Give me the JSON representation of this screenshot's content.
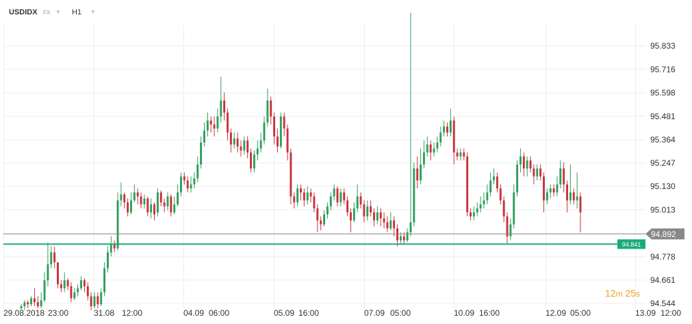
{
  "header": {
    "symbol": "USDIDX",
    "market": "FX",
    "timeframe": "H1"
  },
  "timer": {
    "minutes": "12",
    "m": "m",
    "seconds": "25",
    "s": "s"
  },
  "colors": {
    "up": "#2e9e5b",
    "down": "#c8323c",
    "grid": "#eeeeee",
    "current_price_bg": "#888888",
    "support_line": "#1aab7a"
  },
  "chart_data": {
    "type": "candlestick",
    "title": "",
    "ylim": [
      94.52,
      95.94
    ],
    "y_ticks": [
      "95.833",
      "95.716",
      "95.598",
      "95.481",
      "95.364",
      "95.247",
      "95.130",
      "95.013",
      "94.778",
      "94.661",
      "94.544"
    ],
    "x_ticks": [
      "29.08.2018",
      "23:00",
      "31.08",
      "12:00",
      "04.09",
      "06:00",
      "05.09",
      "16:00",
      "07.09",
      "05:00",
      "10.09",
      "16:00",
      "12.09",
      "05:00",
      "13.09",
      "12:00"
    ],
    "current_price": "94.892",
    "horizontal_line": {
      "value": "94.841"
    },
    "grid": true,
    "candles": [
      [
        94.52,
        94.53,
        94.54,
        94.51
      ],
      [
        94.53,
        94.55,
        94.56,
        94.51
      ],
      [
        94.55,
        94.54,
        94.56,
        94.52
      ],
      [
        94.54,
        94.57,
        94.58,
        94.53
      ],
      [
        94.57,
        94.55,
        94.62,
        94.53
      ],
      [
        94.55,
        94.53,
        94.58,
        94.52
      ],
      [
        94.53,
        94.56,
        94.6,
        94.52
      ],
      [
        94.56,
        94.66,
        94.7,
        94.55
      ],
      [
        94.66,
        94.74,
        94.85,
        94.63
      ],
      [
        94.74,
        94.8,
        94.83,
        94.72
      ],
      [
        94.8,
        94.75,
        94.83,
        94.72
      ],
      [
        94.75,
        94.64,
        94.75,
        94.62
      ],
      [
        94.64,
        94.62,
        94.66,
        94.6
      ],
      [
        94.62,
        94.66,
        94.7,
        94.6
      ],
      [
        94.66,
        94.63,
        94.67,
        94.61
      ],
      [
        94.63,
        94.57,
        94.65,
        94.55
      ],
      [
        94.57,
        94.6,
        94.62,
        94.56
      ],
      [
        94.6,
        94.62,
        94.64,
        94.58
      ],
      [
        94.62,
        94.66,
        94.68,
        94.61
      ],
      [
        94.66,
        94.63,
        94.67,
        94.6
      ],
      [
        94.63,
        94.58,
        94.65,
        94.56
      ],
      [
        94.58,
        94.53,
        94.6,
        94.51
      ],
      [
        94.53,
        94.58,
        94.6,
        94.52
      ],
      [
        94.58,
        94.54,
        94.6,
        94.52
      ],
      [
        94.54,
        94.6,
        94.62,
        94.53
      ],
      [
        94.6,
        94.72,
        94.75,
        94.58
      ],
      [
        94.72,
        94.8,
        94.83,
        94.7
      ],
      [
        94.8,
        94.84,
        94.88,
        94.78
      ],
      [
        94.84,
        94.82,
        94.86,
        94.8
      ],
      [
        94.82,
        95.06,
        95.1,
        94.81
      ],
      [
        95.06,
        95.09,
        95.15,
        95.03
      ],
      [
        95.09,
        95.05,
        95.1,
        95.02
      ],
      [
        95.05,
        95.0,
        95.07,
        94.98
      ],
      [
        95.0,
        95.06,
        95.1,
        94.99
      ],
      [
        95.06,
        95.1,
        95.14,
        95.05
      ],
      [
        95.1,
        95.08,
        95.12,
        95.04
      ],
      [
        95.08,
        95.04,
        95.1,
        95.02
      ],
      [
        95.04,
        95.07,
        95.09,
        95.02
      ],
      [
        95.07,
        95.0,
        95.08,
        94.98
      ],
      [
        95.0,
        95.04,
        95.07,
        94.97
      ],
      [
        95.04,
        94.99,
        95.05,
        94.96
      ],
      [
        95.0,
        95.1,
        95.12,
        94.98
      ],
      [
        95.1,
        95.05,
        95.11,
        95.03
      ],
      [
        95.05,
        95.03,
        95.07,
        95.0
      ],
      [
        95.03,
        95.08,
        95.1,
        95.01
      ],
      [
        95.08,
        95.0,
        95.09,
        94.98
      ],
      [
        95.0,
        95.04,
        95.08,
        94.99
      ],
      [
        95.04,
        95.1,
        95.14,
        95.03
      ],
      [
        95.1,
        95.18,
        95.2,
        95.08
      ],
      [
        95.18,
        95.16,
        95.2,
        95.14
      ],
      [
        95.16,
        95.12,
        95.18,
        95.1
      ],
      [
        95.12,
        95.14,
        95.18,
        95.1
      ],
      [
        95.14,
        95.17,
        95.2,
        95.12
      ],
      [
        95.17,
        95.24,
        95.28,
        95.15
      ],
      [
        95.24,
        95.35,
        95.38,
        95.22
      ],
      [
        95.35,
        95.41,
        95.45,
        95.33
      ],
      [
        95.41,
        95.46,
        95.5,
        95.38
      ],
      [
        95.46,
        95.44,
        95.48,
        95.4
      ],
      [
        95.44,
        95.42,
        95.48,
        95.38
      ],
      [
        95.42,
        95.48,
        95.52,
        95.4
      ],
      [
        95.48,
        95.56,
        95.68,
        95.45
      ],
      [
        95.56,
        95.5,
        95.6,
        95.46
      ],
      [
        95.5,
        95.4,
        95.52,
        95.36
      ],
      [
        95.4,
        95.34,
        95.42,
        95.3
      ],
      [
        95.34,
        95.37,
        95.4,
        95.32
      ],
      [
        95.37,
        95.33,
        95.4,
        95.3
      ],
      [
        95.33,
        95.31,
        95.36,
        95.28
      ],
      [
        95.31,
        95.36,
        95.38,
        95.29
      ],
      [
        95.36,
        95.3,
        95.38,
        95.27
      ],
      [
        95.3,
        95.22,
        95.32,
        95.2
      ],
      [
        95.22,
        95.29,
        95.31,
        95.2
      ],
      [
        95.29,
        95.32,
        95.36,
        95.26
      ],
      [
        95.32,
        95.36,
        95.4,
        95.3
      ],
      [
        95.36,
        95.45,
        95.48,
        95.34
      ],
      [
        95.45,
        95.56,
        95.62,
        95.43
      ],
      [
        95.56,
        95.48,
        95.58,
        95.44
      ],
      [
        95.48,
        95.38,
        95.5,
        95.34
      ],
      [
        95.38,
        95.33,
        95.42,
        95.3
      ],
      [
        95.33,
        95.48,
        95.5,
        95.32
      ],
      [
        95.48,
        95.42,
        95.5,
        95.38
      ],
      [
        95.42,
        95.3,
        95.44,
        95.26
      ],
      [
        95.3,
        95.08,
        95.32,
        95.04
      ],
      [
        95.08,
        95.05,
        95.1,
        95.02
      ],
      [
        95.05,
        95.12,
        95.14,
        95.03
      ],
      [
        95.12,
        95.1,
        95.14,
        95.06
      ],
      [
        95.1,
        95.06,
        95.12,
        95.03
      ],
      [
        95.06,
        95.1,
        95.13,
        95.04
      ],
      [
        95.1,
        95.08,
        95.12,
        95.05
      ],
      [
        95.08,
        95.02,
        95.1,
        95.0
      ],
      [
        95.02,
        94.96,
        95.04,
        94.9
      ],
      [
        94.96,
        94.94,
        94.98,
        94.91
      ],
      [
        94.94,
        94.99,
        95.01,
        94.93
      ],
      [
        94.99,
        95.03,
        95.05,
        94.97
      ],
      [
        95.03,
        95.08,
        95.1,
        95.01
      ],
      [
        95.08,
        95.12,
        95.14,
        95.06
      ],
      [
        95.12,
        95.05,
        95.13,
        95.03
      ],
      [
        95.05,
        95.1,
        95.12,
        95.03
      ],
      [
        95.1,
        95.06,
        95.12,
        95.04
      ],
      [
        95.06,
        95.0,
        95.08,
        94.98
      ],
      [
        95.0,
        94.96,
        95.02,
        94.9
      ],
      [
        94.96,
        95.02,
        95.05,
        94.95
      ],
      [
        95.02,
        95.08,
        95.14,
        95.0
      ],
      [
        95.08,
        95.04,
        95.1,
        95.02
      ],
      [
        95.04,
        94.98,
        95.06,
        94.95
      ],
      [
        94.98,
        95.03,
        95.06,
        94.96
      ],
      [
        95.03,
        95.0,
        95.06,
        94.98
      ],
      [
        95.0,
        94.96,
        95.02,
        94.93
      ],
      [
        94.96,
        95.0,
        95.03,
        94.94
      ],
      [
        95.0,
        94.97,
        95.02,
        94.93
      ],
      [
        94.97,
        94.95,
        95.0,
        94.92
      ],
      [
        94.95,
        94.92,
        94.98,
        94.9
      ],
      [
        94.92,
        94.96,
        95.0,
        94.91
      ],
      [
        94.96,
        94.92,
        94.98,
        94.88
      ],
      [
        94.92,
        94.86,
        94.94,
        94.83
      ],
      [
        94.86,
        94.88,
        94.9,
        94.84
      ],
      [
        94.88,
        94.86,
        94.9,
        94.84
      ],
      [
        94.86,
        94.9,
        94.92,
        94.85
      ],
      [
        94.9,
        94.95,
        96.0,
        94.88
      ],
      [
        94.95,
        95.22,
        95.25,
        94.93
      ],
      [
        95.22,
        95.16,
        95.28,
        95.12
      ],
      [
        95.16,
        95.24,
        95.32,
        95.14
      ],
      [
        95.24,
        95.3,
        95.36,
        95.22
      ],
      [
        95.3,
        95.34,
        95.38,
        95.28
      ],
      [
        95.34,
        95.3,
        95.36,
        95.26
      ],
      [
        95.3,
        95.32,
        95.35,
        95.28
      ],
      [
        95.32,
        95.35,
        95.38,
        95.3
      ],
      [
        95.35,
        95.4,
        95.43,
        95.33
      ],
      [
        95.4,
        95.43,
        95.46,
        95.38
      ],
      [
        95.43,
        95.4,
        95.45,
        95.38
      ],
      [
        95.4,
        95.46,
        95.52,
        95.38
      ],
      [
        95.46,
        95.3,
        95.48,
        95.24
      ],
      [
        95.3,
        95.28,
        95.32,
        95.26
      ],
      [
        95.28,
        95.3,
        95.32,
        95.26
      ],
      [
        95.3,
        95.28,
        95.32,
        95.26
      ],
      [
        95.28,
        95.0,
        95.3,
        94.98
      ],
      [
        95.0,
        94.98,
        95.02,
        94.96
      ],
      [
        94.98,
        95.0,
        95.03,
        94.96
      ],
      [
        95.0,
        95.02,
        95.05,
        94.98
      ],
      [
        95.02,
        95.04,
        95.08,
        95.0
      ],
      [
        95.04,
        95.06,
        95.1,
        95.02
      ],
      [
        95.06,
        95.1,
        95.14,
        95.04
      ],
      [
        95.1,
        95.16,
        95.2,
        95.08
      ],
      [
        95.16,
        95.18,
        95.22,
        95.14
      ],
      [
        95.18,
        95.12,
        95.2,
        95.1
      ],
      [
        95.12,
        95.06,
        95.14,
        95.04
      ],
      [
        95.06,
        94.98,
        95.08,
        94.95
      ],
      [
        94.98,
        94.88,
        95.0,
        94.84
      ],
      [
        94.88,
        94.94,
        94.97,
        94.86
      ],
      [
        94.94,
        95.1,
        95.14,
        94.92
      ],
      [
        95.1,
        95.24,
        95.26,
        95.08
      ],
      [
        95.24,
        95.28,
        95.32,
        95.2
      ],
      [
        95.28,
        95.22,
        95.3,
        95.18
      ],
      [
        95.22,
        95.26,
        95.28,
        95.18
      ],
      [
        95.26,
        95.22,
        95.28,
        95.2
      ],
      [
        95.22,
        95.18,
        95.24,
        95.14
      ],
      [
        95.18,
        95.22,
        95.24,
        95.16
      ],
      [
        95.22,
        95.18,
        95.24,
        95.16
      ],
      [
        95.18,
        95.06,
        95.2,
        95.0
      ],
      [
        95.06,
        95.1,
        95.12,
        95.04
      ],
      [
        95.1,
        95.12,
        95.14,
        95.07
      ],
      [
        95.12,
        95.1,
        95.14,
        95.08
      ],
      [
        95.1,
        95.14,
        95.18,
        95.08
      ],
      [
        95.14,
        95.22,
        95.26,
        95.12
      ],
      [
        95.22,
        95.14,
        95.25,
        95.1
      ],
      [
        95.14,
        95.06,
        95.16,
        95.0
      ],
      [
        95.06,
        95.1,
        95.24,
        95.04
      ],
      [
        95.1,
        95.06,
        95.12,
        95.04
      ],
      [
        95.06,
        95.08,
        95.2,
        95.02
      ],
      [
        95.08,
        95.0,
        95.1,
        94.9
      ]
    ]
  }
}
